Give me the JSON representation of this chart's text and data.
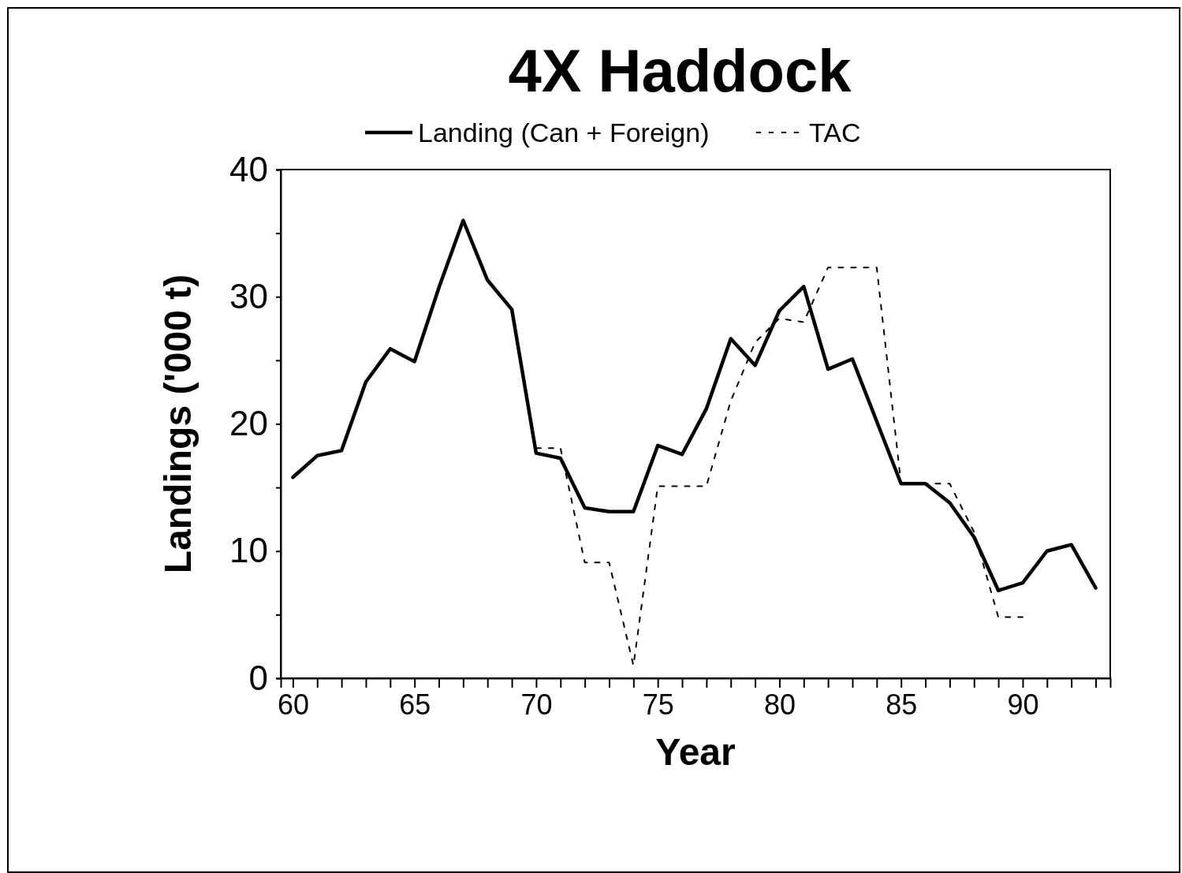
{
  "chart_data": {
    "type": "line",
    "title": "4X Haddock",
    "xlabel": "Year",
    "ylabel": "Landings ('000 t)",
    "x": [
      60,
      61,
      62,
      63,
      64,
      65,
      66,
      67,
      68,
      69,
      70,
      71,
      72,
      73,
      74,
      75,
      76,
      77,
      78,
      79,
      80,
      81,
      82,
      83,
      84,
      85,
      86,
      87,
      88,
      89,
      90,
      91,
      92,
      93
    ],
    "series": [
      {
        "name": "Landing (Can + Foreign)",
        "color": "#000000",
        "line_style": "solid",
        "values": [
          15.8,
          17.5,
          17.9,
          23.3,
          25.9,
          24.9,
          30.7,
          36.0,
          31.3,
          29.0,
          17.7,
          17.3,
          13.4,
          13.1,
          13.1,
          18.3,
          17.6,
          21.2,
          26.7,
          24.6,
          28.9,
          30.8,
          24.3,
          25.1,
          20.2,
          15.3,
          15.3,
          13.8,
          11.1,
          6.9,
          7.5,
          10.0,
          10.5,
          7.1
        ]
      },
      {
        "name": "TAC",
        "color": "#000000",
        "line_style": "dashed",
        "values": [
          null,
          null,
          null,
          null,
          null,
          null,
          null,
          null,
          null,
          null,
          18.1,
          18.1,
          9.1,
          9.1,
          1.0,
          15.1,
          15.1,
          15.1,
          21.8,
          26.4,
          28.3,
          28.0,
          32.3,
          32.3,
          32.3,
          15.3,
          15.3,
          15.3,
          11.5,
          4.8,
          4.8,
          null,
          null,
          null
        ]
      }
    ],
    "xlim": [
      59.5,
      93.6
    ],
    "xticks": [
      {
        "value": 60,
        "label": "60"
      },
      {
        "value": 61,
        "label": null
      },
      {
        "value": 62,
        "label": null
      },
      {
        "value": 63,
        "label": null
      },
      {
        "value": 64,
        "label": null
      },
      {
        "value": 65,
        "label": "65"
      },
      {
        "value": 66,
        "label": null
      },
      {
        "value": 67,
        "label": null
      },
      {
        "value": 68,
        "label": null
      },
      {
        "value": 69,
        "label": null
      },
      {
        "value": 70,
        "label": "70"
      },
      {
        "value": 71,
        "label": null
      },
      {
        "value": 72,
        "label": null
      },
      {
        "value": 73,
        "label": null
      },
      {
        "value": 74,
        "label": null
      },
      {
        "value": 75,
        "label": "75"
      },
      {
        "value": 76,
        "label": null
      },
      {
        "value": 77,
        "label": null
      },
      {
        "value": 78,
        "label": null
      },
      {
        "value": 79,
        "label": null
      },
      {
        "value": 80,
        "label": "80"
      },
      {
        "value": 81,
        "label": null
      },
      {
        "value": 82,
        "label": null
      },
      {
        "value": 83,
        "label": null
      },
      {
        "value": 84,
        "label": null
      },
      {
        "value": 85,
        "label": "85"
      },
      {
        "value": 86,
        "label": null
      },
      {
        "value": 87,
        "label": null
      },
      {
        "value": 88,
        "label": null
      },
      {
        "value": 89,
        "label": null
      },
      {
        "value": 90,
        "label": "90"
      },
      {
        "value": 91,
        "label": null
      },
      {
        "value": 92,
        "label": null
      },
      {
        "value": 93,
        "label": null
      }
    ],
    "ylim": [
      0,
      40
    ],
    "yticks": [
      0,
      {
        "value": 5,
        "label": null
      },
      10,
      {
        "value": 15,
        "label": null
      },
      20,
      {
        "value": 25,
        "label": null
      },
      30,
      {
        "value": 35,
        "label": null
      },
      40
    ],
    "grid": false,
    "legend": "top",
    "marker": "none"
  }
}
